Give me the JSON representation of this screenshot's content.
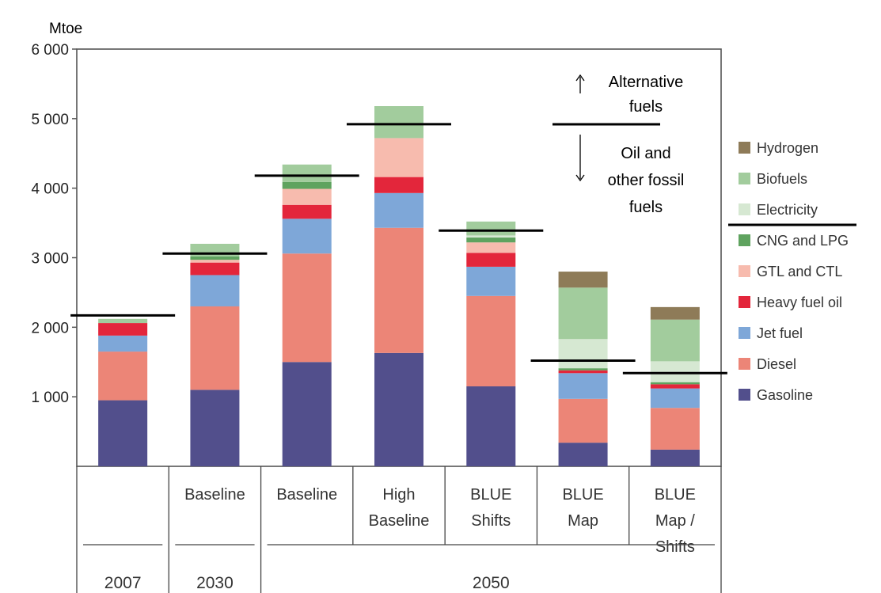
{
  "chart_data": {
    "type": "bar",
    "stacked": true,
    "ylabel": "Mtoe",
    "ylim": [
      0,
      6000
    ],
    "yticks": [
      {
        "value": 1000,
        "label": "1 000"
      },
      {
        "value": 2000,
        "label": "2 000"
      },
      {
        "value": 3000,
        "label": "3 000"
      },
      {
        "value": 4000,
        "label": "4 000"
      },
      {
        "value": 5000,
        "label": "5 000"
      },
      {
        "value": 6000,
        "label": "6 000"
      }
    ],
    "grid": false,
    "legend_position": "right",
    "categories": [
      {
        "lines": [],
        "year": "2007"
      },
      {
        "lines": [
          "Baseline"
        ],
        "year": "2030"
      },
      {
        "lines": [
          "Baseline"
        ],
        "year": "2050"
      },
      {
        "lines": [
          "High",
          "Baseline"
        ],
        "year": "2050"
      },
      {
        "lines": [
          "BLUE",
          "Shifts"
        ],
        "year": "2050"
      },
      {
        "lines": [
          "BLUE",
          "Map"
        ],
        "year": "2050"
      },
      {
        "lines": [
          "BLUE",
          "Map /",
          "Shifts"
        ],
        "year": "2050"
      }
    ],
    "year_groups": [
      {
        "label": "2007",
        "first": 0,
        "last": 0
      },
      {
        "label": "2030",
        "first": 1,
        "last": 1
      },
      {
        "label": "2050",
        "first": 2,
        "last": 6
      }
    ],
    "series": [
      {
        "name": "Gasoline",
        "color": "#524f8c",
        "values": [
          950,
          1100,
          1500,
          1630,
          1150,
          340,
          240
        ]
      },
      {
        "name": "Diesel",
        "color": "#ec8577",
        "values": [
          700,
          1200,
          1560,
          1800,
          1300,
          630,
          600
        ]
      },
      {
        "name": "Jet fuel",
        "color": "#7ea7d8",
        "values": [
          230,
          450,
          500,
          500,
          420,
          370,
          280
        ]
      },
      {
        "name": "Heavy fuel oil",
        "color": "#e3263b",
        "values": [
          180,
          180,
          200,
          230,
          200,
          40,
          60
        ]
      },
      {
        "name": "GTL and CTL",
        "color": "#f7bbae",
        "values": [
          0,
          40,
          230,
          560,
          150,
          0,
          0
        ]
      },
      {
        "name": "CNG and LPG",
        "color": "#5fa35f",
        "values": [
          0,
          50,
          100,
          0,
          70,
          30,
          30
        ]
      },
      {
        "name": "Electricity",
        "color": "#d6e8d2",
        "values": [
          0,
          0,
          0,
          0,
          30,
          420,
          300
        ]
      },
      {
        "name": "Biofuels",
        "color": "#a2cc9d",
        "values": [
          60,
          180,
          250,
          460,
          200,
          740,
          600
        ]
      },
      {
        "name": "Hydrogen",
        "color": "#8e7b58",
        "values": [
          0,
          0,
          0,
          0,
          0,
          230,
          180
        ]
      }
    ],
    "divider_values": [
      2170,
      3060,
      4180,
      4920,
      3390,
      1520,
      1340
    ],
    "annotations": {
      "up": [
        "Alternative",
        "fuels"
      ],
      "down": [
        "Oil and",
        "other fossil",
        "fuels"
      ]
    },
    "legend_order": [
      "Hydrogen",
      "Biofuels",
      "Electricity",
      "CNG and LPG",
      "GTL and CTL",
      "Heavy fuel oil",
      "Jet fuel",
      "Diesel",
      "Gasoline"
    ]
  }
}
